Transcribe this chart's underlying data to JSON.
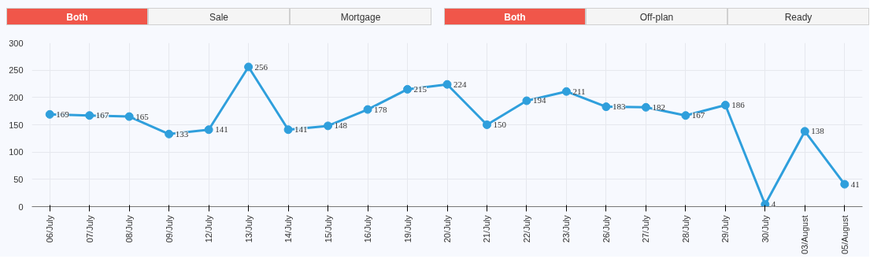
{
  "chart_data": {
    "type": "line",
    "annotations": [
      "Both",
      "Sale",
      "Mortgage",
      "Both",
      "Off-plan",
      "Ready"
    ],
    "categories": [
      "06/July",
      "07/July",
      "08/July",
      "09/July",
      "12/July",
      "13/July",
      "14/July",
      "15/July",
      "16/July",
      "19/July",
      "20/July",
      "21/July",
      "22/July",
      "23/July",
      "26/July",
      "27/July",
      "28/July",
      "29/July",
      "30/July",
      "03/August",
      "05/August"
    ],
    "series": [
      {
        "color": "#2f9fdc",
        "values": [
          169,
          167,
          165,
          133,
          141,
          256,
          141,
          148,
          178,
          215,
          224,
          150,
          194,
          211,
          183,
          182,
          167,
          186,
          4,
          138,
          41
        ]
      }
    ],
    "ylim": [
      0,
      300
    ],
    "yticks": [
      0,
      50,
      100,
      150,
      200,
      250,
      300
    ],
    "grid": true,
    "marker": "circle",
    "line_style": "solid",
    "data_labels": true
  }
}
